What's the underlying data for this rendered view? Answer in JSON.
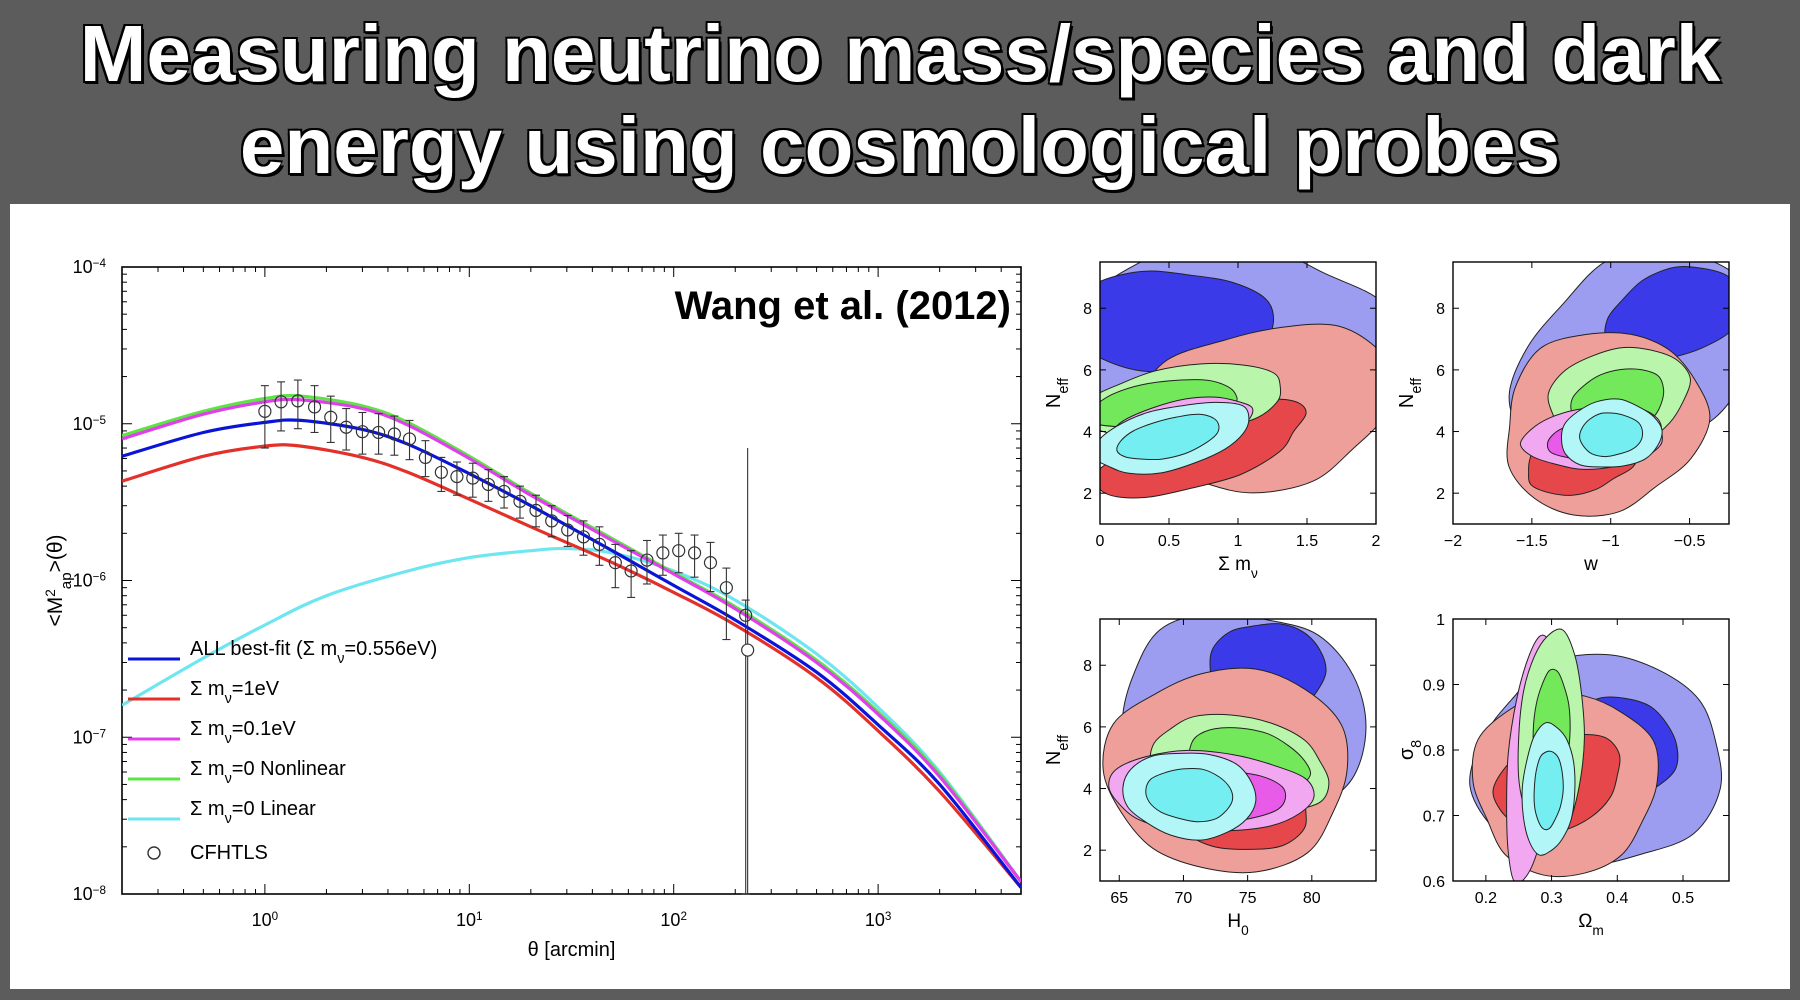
{
  "title": {
    "line1": "Measuring neutrino mass/species and dark",
    "line2": "energy using cosmological probes"
  },
  "colors": {
    "title_bg": "#5c5c5c",
    "blue": "#0a14d6",
    "red": "#e3302a",
    "magenta": "#e040ec",
    "green": "#5de344",
    "cyan": "#6ee6f0",
    "blue_light": "#9c9cf0",
    "blue_dark": "#3a3ae8",
    "red_light": "#ef9f9a",
    "red_dark": "#e6474a",
    "magenta_light": "#f1a8f1",
    "magenta_dark": "#e85ae8",
    "green_light": "#b9f5aa",
    "green_dark": "#72e85a",
    "cyan_light": "#b3f6f8",
    "cyan_dark": "#74eef0"
  },
  "chart_data": [
    {
      "type": "line",
      "annotation": "Wang et al. (2012)",
      "xlabel": "θ [arcmin]",
      "ylabel": "<M²ap>(θ)",
      "xscale": "log",
      "yscale": "log",
      "xlim": [
        0.2,
        5000
      ],
      "ylim": [
        1e-08,
        0.0001
      ],
      "xticks": [
        {
          "value": 1,
          "base": "10",
          "exp": "0"
        },
        {
          "value": 10,
          "base": "10",
          "exp": "1"
        },
        {
          "value": 100,
          "base": "10",
          "exp": "2"
        },
        {
          "value": 1000,
          "base": "10",
          "exp": "3"
        }
      ],
      "yticks": [
        {
          "value": 1e-08,
          "base": "10",
          "exp": "−8"
        },
        {
          "value": 1e-07,
          "base": "10",
          "exp": "−7"
        },
        {
          "value": 1e-06,
          "base": "10",
          "exp": "−6"
        },
        {
          "value": 1e-05,
          "base": "10",
          "exp": "−5"
        },
        {
          "value": 0.0001,
          "base": "10",
          "exp": "−4"
        }
      ],
      "legend_position": "bottom-left",
      "series": [
        {
          "name": "ALL best-fit (Σ mν=0.556eV)",
          "legend": [
            "ALL best-fit (Σ m",
            "ν",
            "=0.556eV)"
          ],
          "color": "#0a14d6",
          "x": [
            0.2,
            0.5,
            1,
            1.5,
            3,
            5,
            10,
            20,
            50,
            100,
            200,
            500,
            1000,
            2000,
            5000
          ],
          "y": [
            6.2e-06,
            8.8e-06,
            1.02e-05,
            1.05e-05,
            9.2e-06,
            7.4e-06,
            4.8e-06,
            3e-06,
            1.55e-06,
            9.3e-07,
            5.6e-07,
            2.6e-07,
            1.2e-07,
            5e-08,
            1.1e-08
          ]
        },
        {
          "name": "Σ mν=1eV",
          "legend": [
            "Σ m",
            "ν",
            "=1eV"
          ],
          "color": "#e3302a",
          "x": [
            0.2,
            0.5,
            1,
            1.5,
            3,
            5,
            10,
            20,
            50,
            100,
            200,
            500,
            1000,
            2000,
            5000
          ],
          "y": [
            4.3e-06,
            6.2e-06,
            7.2e-06,
            7.2e-06,
            6.1e-06,
            4.9e-06,
            3.3e-06,
            2.2e-06,
            1.3e-06,
            8.4e-07,
            5.2e-07,
            2.4e-07,
            1.1e-07,
            4.5e-08,
            1.1e-08
          ]
        },
        {
          "name": "Σ mν=0.1eV",
          "legend": [
            "Σ m",
            "ν",
            "=0.1eV"
          ],
          "color": "#e040ec",
          "x": [
            0.2,
            0.5,
            1,
            1.5,
            3,
            5,
            10,
            20,
            50,
            100,
            200,
            500,
            1000,
            2000,
            5000
          ],
          "y": [
            8e-06,
            1.15e-05,
            1.38e-05,
            1.42e-05,
            1.25e-05,
            9.8e-06,
            6e-06,
            3.5e-06,
            1.8e-06,
            1.1e-06,
            6.6e-07,
            3e-07,
            1.4e-07,
            5.6e-08,
            1.2e-08
          ]
        },
        {
          "name": "Σ mν=0 Nonlinear",
          "legend": [
            "Σ m",
            "ν",
            "=0 Nonlinear"
          ],
          "color": "#5de344",
          "x": [
            0.2,
            0.5,
            1,
            1.5,
            3,
            5,
            10,
            20,
            50,
            100,
            200,
            500,
            1000,
            2000,
            5000
          ],
          "y": [
            8.4e-06,
            1.2e-05,
            1.45e-05,
            1.5e-05,
            1.3e-05,
            1.02e-05,
            6.2e-06,
            3.6e-06,
            1.85e-06,
            1.12e-06,
            6.8e-07,
            3.1e-07,
            1.45e-07,
            5.8e-08,
            1.2e-08
          ]
        },
        {
          "name": "Σ mν=0 Linear",
          "legend": [
            "Σ m",
            "ν",
            "=0 Linear"
          ],
          "color": "#6ee6f0",
          "x": [
            0.2,
            0.5,
            1,
            2,
            5,
            10,
            20,
            30,
            50,
            100,
            200,
            500,
            1000,
            2000,
            5000
          ],
          "y": [
            1.6e-07,
            3.2e-07,
            5.2e-07,
            8e-07,
            1.15e-06,
            1.4e-06,
            1.55e-06,
            1.6e-06,
            1.5e-06,
            1.15e-06,
            7.5e-07,
            3.4e-07,
            1.55e-07,
            6e-08,
            1.2e-08
          ]
        }
      ],
      "data_series": {
        "name": "CFHTLS",
        "x": [
          1.0,
          1.2,
          1.45,
          1.75,
          2.1,
          2.5,
          3.0,
          3.6,
          4.3,
          5.1,
          6.1,
          7.3,
          8.7,
          10.4,
          12.4,
          14.8,
          17.7,
          21.2,
          25.3,
          30.3,
          36.2,
          43.3,
          51.8,
          61.9,
          74.0,
          88.5,
          105.8,
          126.5,
          151.3,
          181,
          225
        ],
        "y": [
          1.2e-05,
          1.38e-05,
          1.4e-05,
          1.28e-05,
          1.1e-05,
          9.5e-06,
          8.9e-06,
          8.8e-06,
          8.6e-06,
          8e-06,
          6.1e-06,
          4.9e-06,
          4.6e-06,
          4.5e-06,
          4.1e-06,
          3.7e-06,
          3.2e-06,
          2.8e-06,
          2.4e-06,
          2.1e-06,
          1.9e-06,
          1.7e-06,
          1.3e-06,
          1.15e-06,
          1.35e-06,
          1.5e-06,
          1.55e-06,
          1.5e-06,
          1.3e-06,
          9e-07,
          6e-07
        ],
        "err_lo": [
          7e-06,
          9e-06,
          9.3e-06,
          8.8e-06,
          7.6e-06,
          6.8e-06,
          6.4e-06,
          6.4e-06,
          6.3e-06,
          5.9e-06,
          4.6e-06,
          3.7e-06,
          3.5e-06,
          3.4e-06,
          3.2e-06,
          2.9e-06,
          2.5e-06,
          2.2e-06,
          1.9e-06,
          1.65e-06,
          1.45e-06,
          1.25e-06,
          9e-07,
          7.8e-07,
          9.5e-07,
          1.08e-06,
          1.12e-06,
          1.05e-06,
          8.5e-07,
          4.2e-07,
          1e-08
        ],
        "err_hi": [
          1.75e-05,
          1.85e-05,
          1.9e-05,
          1.75e-05,
          1.5e-05,
          1.25e-05,
          1.18e-05,
          1.16e-05,
          1.12e-05,
          1.05e-05,
          7.8e-06,
          6.1e-06,
          5.7e-06,
          5.6e-06,
          5.1e-06,
          4.6e-06,
          4e-06,
          3.5e-06,
          3e-06,
          2.6e-06,
          2.4e-06,
          2.2e-06,
          1.7e-06,
          1.55e-06,
          1.8e-06,
          1.95e-06,
          2e-06,
          1.95e-06,
          1.75e-06,
          1.2e-06,
          7.5e-07
        ]
      },
      "extra_point": {
        "x": 230,
        "y": 3.6e-07
      }
    },
    {
      "type": "contour",
      "panels": [
        {
          "xlabel": "Σ m",
          "xlabel_sub": "ν",
          "ylabel": "N",
          "ylabel_sub": "eff",
          "xlim": [
            0,
            2
          ],
          "ylim": [
            1,
            9.5
          ],
          "xticks": [
            "0",
            "0.5",
            "1",
            "1.5",
            "2"
          ],
          "xtick_values": [
            0,
            0.5,
            1,
            1.5,
            2
          ],
          "yticks": [
            "2",
            "4",
            "6",
            "8"
          ],
          "ytick_values": [
            2,
            4,
            6,
            8
          ]
        },
        {
          "xlabel": "w",
          "xlabel_sub": "",
          "ylabel": "N",
          "ylabel_sub": "eff",
          "xlim": [
            -2,
            -0.25
          ],
          "ylim": [
            1,
            9.5
          ],
          "xticks": [
            "−2",
            "−1.5",
            "−1",
            "−0.5"
          ],
          "xtick_values": [
            -2,
            -1.5,
            -1,
            -0.5
          ],
          "yticks": [
            "2",
            "4",
            "6",
            "8"
          ],
          "ytick_values": [
            2,
            4,
            6,
            8
          ]
        },
        {
          "xlabel": "H",
          "xlabel_sub": "0",
          "ylabel": "N",
          "ylabel_sub": "eff",
          "xlim": [
            63.5,
            85
          ],
          "ylim": [
            1,
            9.5
          ],
          "xticks": [
            "65",
            "70",
            "75",
            "80"
          ],
          "xtick_values": [
            65,
            70,
            75,
            80
          ],
          "yticks": [
            "2",
            "4",
            "6",
            "8"
          ],
          "ytick_values": [
            2,
            4,
            6,
            8
          ]
        },
        {
          "xlabel": "Ω",
          "xlabel_sub": "m",
          "ylabel": "σ",
          "ylabel_sub": "8",
          "xlim": [
            0.15,
            0.57
          ],
          "ylim": [
            0.6,
            1.0
          ],
          "xticks": [
            "0.2",
            "0.3",
            "0.4",
            "0.5"
          ],
          "xtick_values": [
            0.2,
            0.3,
            0.4,
            0.5
          ],
          "yticks": [
            "0.6",
            "0.7",
            "0.8",
            "0.9",
            "1"
          ],
          "ytick_values": [
            0.6,
            0.7,
            0.8,
            0.9,
            1.0
          ]
        }
      ]
    }
  ]
}
